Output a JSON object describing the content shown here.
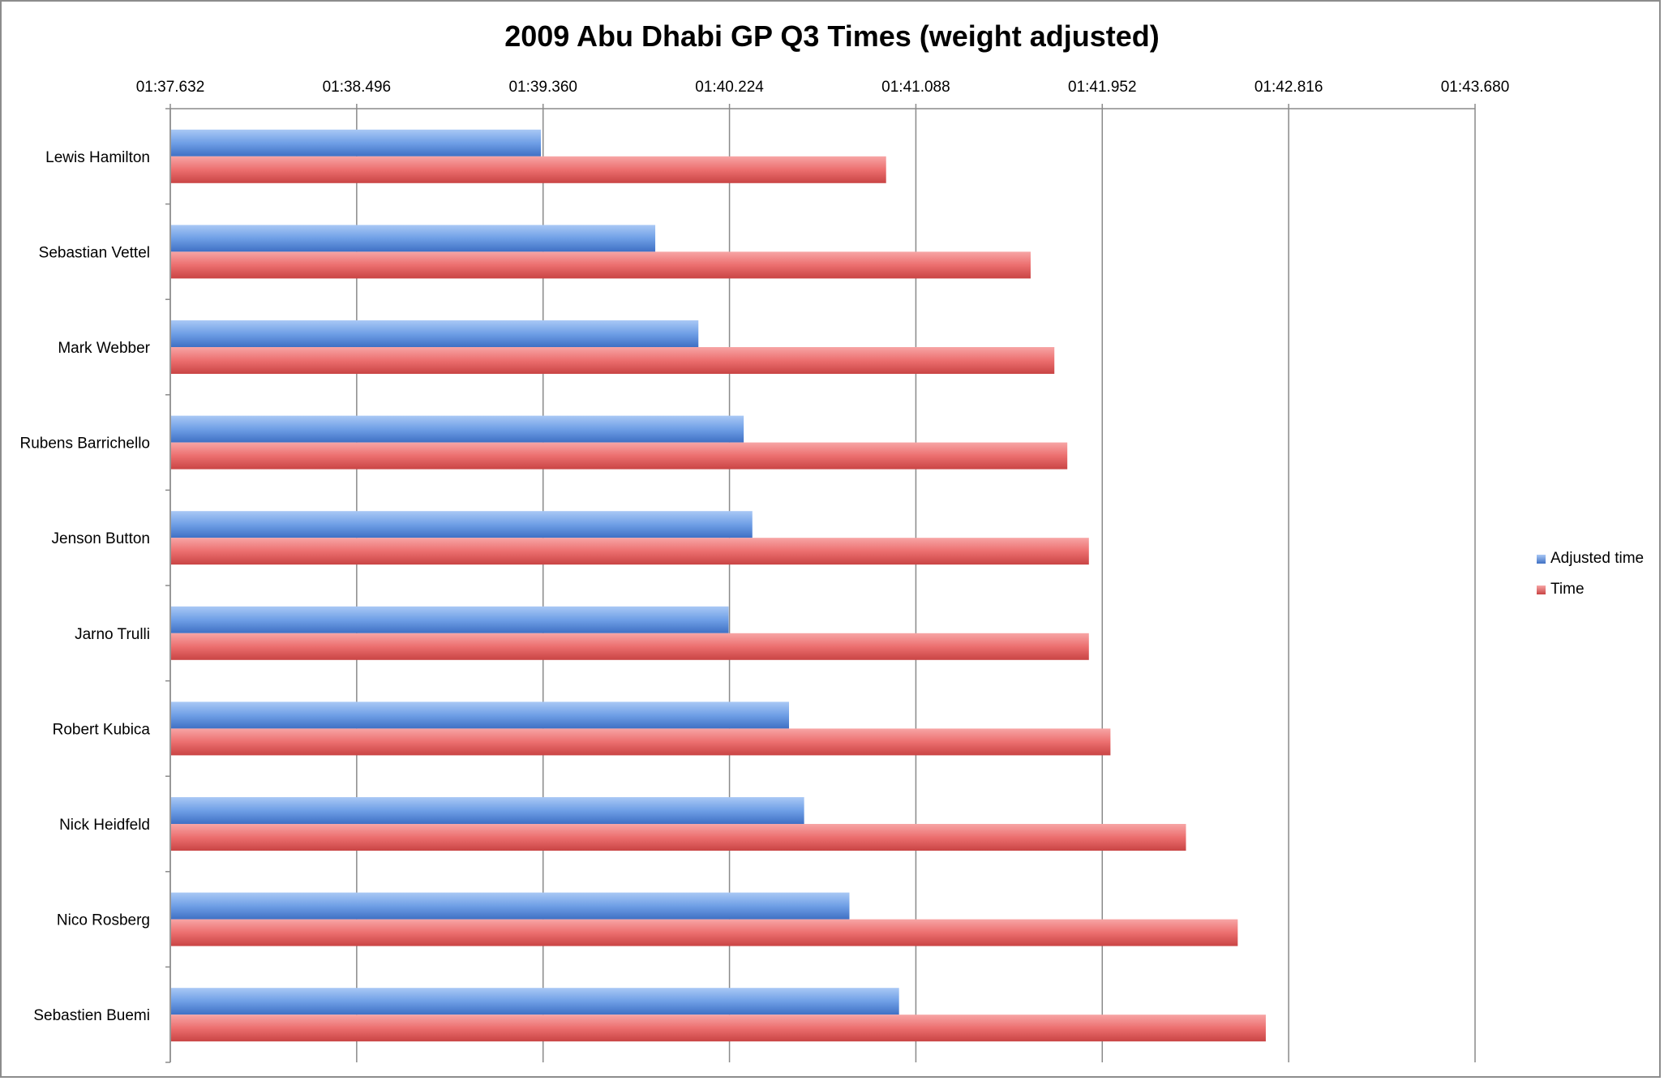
{
  "chart_data": {
    "type": "bar",
    "orientation": "horizontal",
    "title": "2009 Abu Dhabi GP Q3 Times (weight adjusted)",
    "xlabel": "",
    "ylabel": "",
    "x_axis_position": "top",
    "xlim": [
      "01:37.632",
      "01:43.680"
    ],
    "xlim_seconds": [
      97.632,
      103.68
    ],
    "x_ticks": [
      "01:37.632",
      "01:38.496",
      "01:39.360",
      "01:40.224",
      "01:41.088",
      "01:41.952",
      "01:42.816",
      "01:43.680"
    ],
    "grid": "vertical major gridlines",
    "legend_position": "right",
    "categories": [
      "Lewis Hamilton",
      "Sebastian Vettel",
      "Mark Webber",
      "Rubens Barrichello",
      "Jenson Button",
      "Jarno Trulli",
      "Robert Kubica",
      "Nick Heidfeld",
      "Nico Rosberg",
      "Sebastien Buemi"
    ],
    "series": [
      {
        "name": "Adjusted time",
        "color": "#4f81bd",
        "values_seconds": [
          99.35,
          99.88,
          100.08,
          100.29,
          100.33,
          100.22,
          100.5,
          100.57,
          100.78,
          101.01
        ]
      },
      {
        "name": "Time",
        "color": "#c0504d",
        "values_seconds": [
          100.95,
          101.62,
          101.73,
          101.79,
          101.89,
          101.89,
          101.99,
          102.34,
          102.58,
          102.71
        ]
      }
    ]
  }
}
